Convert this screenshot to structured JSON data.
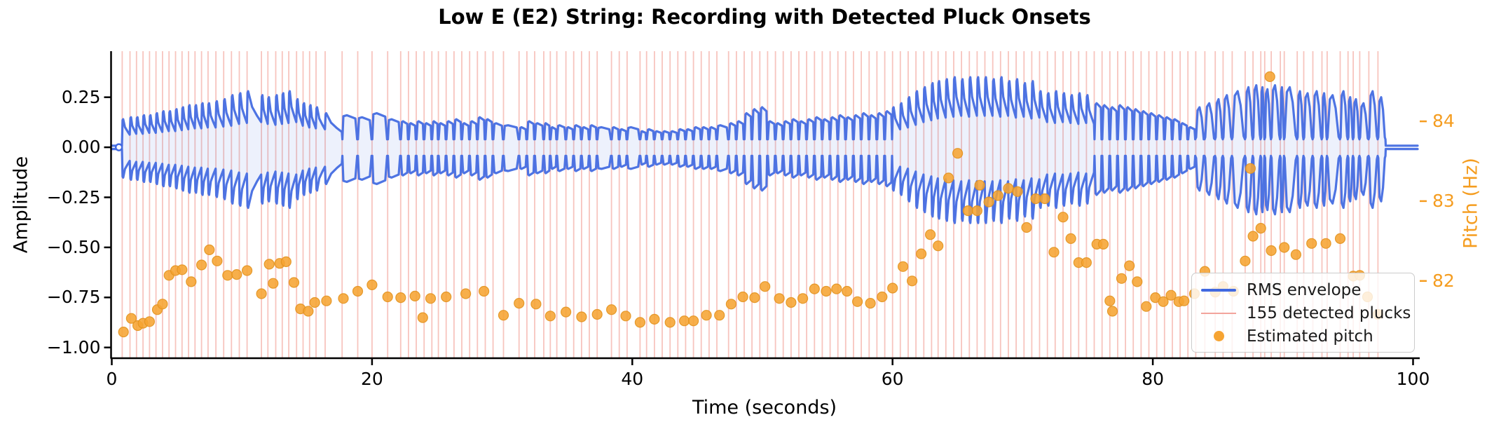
{
  "chart_data": {
    "type": "line+scatter+event-lines",
    "title": "Low E (E2) String: Recording with Detected Pluck Onsets",
    "xlabel": "Time (seconds)",
    "ylabel_left": "Amplitude",
    "ylabel_right": "Pitch (Hz)",
    "xlim": [
      0,
      100.35
    ],
    "ylim_left": [
      -1.05,
      0.48
    ],
    "ylim_right": [
      81.04,
      84.88
    ],
    "grid": false,
    "xtick_values": [
      0,
      20,
      40,
      60,
      80,
      100
    ],
    "xtick_labels": [
      "0",
      "20",
      "40",
      "60",
      "80",
      "100"
    ],
    "ytick_left_values": [
      0.25,
      0.0,
      -0.25,
      -0.5,
      -0.75,
      -1.0
    ],
    "ytick_left_labels": [
      "0.25",
      "0.00",
      "−0.25",
      "−0.50",
      "−0.75",
      "−1.00"
    ],
    "ytick_right_values": [
      84,
      83,
      82
    ],
    "ytick_right_labels": [
      "84",
      "83",
      "82"
    ],
    "colors": {
      "envelope": "#4169e1",
      "envelope_fill": "rgba(80,118,230,0.10)",
      "pluck_lines": "rgba(235,100,85,0.38)",
      "pitch_dots": "#f6a432",
      "pitch_dot_edge": "#e2921f",
      "pitch_axis": "#f59d20",
      "axis": "#000000"
    },
    "legend": {
      "location": "lower right",
      "items": [
        {
          "label": "RMS envelope",
          "marker": "line",
          "color": "#4169e1"
        },
        {
          "label": "155 detected plucks",
          "marker": "line-thin",
          "color": "#f2a49c"
        },
        {
          "label": "Estimated pitch",
          "marker": "dot",
          "color": "#f6a432"
        }
      ]
    },
    "pluck_count": 155,
    "rms_envelope": {
      "neg_scale": 1.08,
      "start_flat_until": 0.8,
      "start_marker_t": 0.55,
      "end_flat_from": 97.9,
      "plucks": [
        [
          0.8,
          0.14,
          "d"
        ],
        [
          1.4,
          0.15,
          "d"
        ],
        [
          1.9,
          0.15,
          "d"
        ],
        [
          2.4,
          0.16,
          "d"
        ],
        [
          2.9,
          0.16,
          "d"
        ],
        [
          3.4,
          0.17,
          "d"
        ],
        [
          3.9,
          0.18,
          "d"
        ],
        [
          4.4,
          0.18,
          "d"
        ],
        [
          4.9,
          0.19,
          "d"
        ],
        [
          5.4,
          0.2,
          "d"
        ],
        [
          5.9,
          0.21,
          "d"
        ],
        [
          6.4,
          0.21,
          "d"
        ],
        [
          6.9,
          0.22,
          "d"
        ],
        [
          7.4,
          0.22,
          "d"
        ],
        [
          8.0,
          0.23,
          "d"
        ],
        [
          8.6,
          0.24,
          "d"
        ],
        [
          9.2,
          0.26,
          "d"
        ],
        [
          9.8,
          0.27,
          "d"
        ],
        [
          10.4,
          0.28,
          "d"
        ],
        [
          11.5,
          0.26,
          "d"
        ],
        [
          12.0,
          0.25,
          "d"
        ],
        [
          12.6,
          0.26,
          "d"
        ],
        [
          13.1,
          0.27,
          "d"
        ],
        [
          13.6,
          0.28,
          "d"
        ],
        [
          14.2,
          0.24,
          "d"
        ],
        [
          14.7,
          0.22,
          "d"
        ],
        [
          15.2,
          0.21,
          "d"
        ],
        [
          15.7,
          0.2,
          "d"
        ],
        [
          16.4,
          0.17,
          "d"
        ],
        [
          17.7,
          0.16,
          "s"
        ],
        [
          18.9,
          0.15,
          "s"
        ],
        [
          20.0,
          0.17,
          "s"
        ],
        [
          21.2,
          0.14,
          "s"
        ],
        [
          22.2,
          0.13,
          "s"
        ],
        [
          22.8,
          0.12,
          "s"
        ],
        [
          23.4,
          0.13,
          "s"
        ],
        [
          24.0,
          0.12,
          "s"
        ],
        [
          24.6,
          0.13,
          "s"
        ],
        [
          25.1,
          0.12,
          "s"
        ],
        [
          25.7,
          0.13,
          "s"
        ],
        [
          26.3,
          0.14,
          "s"
        ],
        [
          26.9,
          0.12,
          "s"
        ],
        [
          27.5,
          0.13,
          "s"
        ],
        [
          28.1,
          0.15,
          "s"
        ],
        [
          28.7,
          0.14,
          "s"
        ],
        [
          29.3,
          0.12,
          "s"
        ],
        [
          30.1,
          0.11,
          "s"
        ],
        [
          31.3,
          0.1,
          "s"
        ],
        [
          31.9,
          0.13,
          "s"
        ],
        [
          32.5,
          0.12,
          "s"
        ],
        [
          33.2,
          0.12,
          "s"
        ],
        [
          33.7,
          0.1,
          "s"
        ],
        [
          34.2,
          0.11,
          "s"
        ],
        [
          34.9,
          0.1,
          "s"
        ],
        [
          35.5,
          0.11,
          "s"
        ],
        [
          36.1,
          0.1,
          "s"
        ],
        [
          36.7,
          0.11,
          "s"
        ],
        [
          37.3,
          0.1,
          "s"
        ],
        [
          38.4,
          0.1,
          "s"
        ],
        [
          39.0,
          0.09,
          "s"
        ],
        [
          39.6,
          0.1,
          "s"
        ],
        [
          40.6,
          0.08,
          "s"
        ],
        [
          41.1,
          0.09,
          "s"
        ],
        [
          41.7,
          0.08,
          "s"
        ],
        [
          42.3,
          0.08,
          "s"
        ],
        [
          42.9,
          0.08,
          "s"
        ],
        [
          43.5,
          0.09,
          "s"
        ],
        [
          44.1,
          0.09,
          "s"
        ],
        [
          44.7,
          0.1,
          "s"
        ],
        [
          45.3,
          0.1,
          "s"
        ],
        [
          45.9,
          0.1,
          "s"
        ],
        [
          46.5,
          0.11,
          "s"
        ],
        [
          47.4,
          0.12,
          "s"
        ],
        [
          48.0,
          0.13,
          "s"
        ],
        [
          48.6,
          0.17,
          "s"
        ],
        [
          49.2,
          0.19,
          "s"
        ],
        [
          49.8,
          0.2,
          "s"
        ],
        [
          50.4,
          0.13,
          "s"
        ],
        [
          51.0,
          0.12,
          "s"
        ],
        [
          51.6,
          0.13,
          "s"
        ],
        [
          52.2,
          0.14,
          "s"
        ],
        [
          52.8,
          0.13,
          "s"
        ],
        [
          53.4,
          0.14,
          "s"
        ],
        [
          54.0,
          0.15,
          "s"
        ],
        [
          54.6,
          0.14,
          "s"
        ],
        [
          55.2,
          0.15,
          "s"
        ],
        [
          55.8,
          0.16,
          "s"
        ],
        [
          56.4,
          0.15,
          "s"
        ],
        [
          57.0,
          0.16,
          "s"
        ],
        [
          57.6,
          0.17,
          "s"
        ],
        [
          58.2,
          0.16,
          "s"
        ],
        [
          58.8,
          0.17,
          "s"
        ],
        [
          59.4,
          0.18,
          "s"
        ],
        [
          60.0,
          0.2,
          "d"
        ],
        [
          60.6,
          0.22,
          "d"
        ],
        [
          61.2,
          0.25,
          "d"
        ],
        [
          61.8,
          0.28,
          "d"
        ],
        [
          62.4,
          0.3,
          "d"
        ],
        [
          63.0,
          0.32,
          "d"
        ],
        [
          63.5,
          0.33,
          "d"
        ],
        [
          64.1,
          0.34,
          "d"
        ],
        [
          64.7,
          0.35,
          "d"
        ],
        [
          65.3,
          0.34,
          "d"
        ],
        [
          65.9,
          0.35,
          "d"
        ],
        [
          66.5,
          0.35,
          "d"
        ],
        [
          67.1,
          0.35,
          "d"
        ],
        [
          67.7,
          0.34,
          "d"
        ],
        [
          68.3,
          0.35,
          "d"
        ],
        [
          68.9,
          0.33,
          "d"
        ],
        [
          69.5,
          0.34,
          "d"
        ],
        [
          70.1,
          0.32,
          "d"
        ],
        [
          70.7,
          0.33,
          "d"
        ],
        [
          71.3,
          0.28,
          "d"
        ],
        [
          71.9,
          0.27,
          "d"
        ],
        [
          72.5,
          0.28,
          "d"
        ],
        [
          73.1,
          0.27,
          "d"
        ],
        [
          73.7,
          0.26,
          "d"
        ],
        [
          74.3,
          0.27,
          "d"
        ],
        [
          74.9,
          0.26,
          "d"
        ],
        [
          75.5,
          0.22,
          "s"
        ],
        [
          76.1,
          0.21,
          "s"
        ],
        [
          76.7,
          0.2,
          "s"
        ],
        [
          77.3,
          0.21,
          "s"
        ],
        [
          77.9,
          0.2,
          "s"
        ],
        [
          78.5,
          0.19,
          "s"
        ],
        [
          79.1,
          0.18,
          "s"
        ],
        [
          79.7,
          0.17,
          "s"
        ],
        [
          80.3,
          0.16,
          "s"
        ],
        [
          80.9,
          0.15,
          "s"
        ],
        [
          81.5,
          0.14,
          "s"
        ],
        [
          82.1,
          0.12,
          "s"
        ],
        [
          82.7,
          0.1,
          "s"
        ],
        [
          83.3,
          0.2,
          "b"
        ],
        [
          84.0,
          0.22,
          "b"
        ],
        [
          84.8,
          0.24,
          "b"
        ],
        [
          85.4,
          0.26,
          "b"
        ],
        [
          86.1,
          0.28,
          "b"
        ],
        [
          87.1,
          0.3,
          "b"
        ],
        [
          87.7,
          0.31,
          "b"
        ],
        [
          88.3,
          0.3,
          "b"
        ],
        [
          88.6,
          0.29,
          "b"
        ],
        [
          89.1,
          0.31,
          "b"
        ],
        [
          89.8,
          0.3,
          "b"
        ],
        [
          90.1,
          0.3,
          "b"
        ],
        [
          91.1,
          0.28,
          "b"
        ],
        [
          91.6,
          0.27,
          "b"
        ],
        [
          92.3,
          0.28,
          "b"
        ],
        [
          93.0,
          0.27,
          "b"
        ],
        [
          93.4,
          0.26,
          "b"
        ],
        [
          94.4,
          0.28,
          "b"
        ],
        [
          95.0,
          0.25,
          "b"
        ],
        [
          95.4,
          0.24,
          "b"
        ],
        [
          95.9,
          0.22,
          "b"
        ],
        [
          96.6,
          0.28,
          "b"
        ],
        [
          97.3,
          0.25,
          "b"
        ]
      ]
    },
    "pitch_points": [
      [
        0.9,
        81.36
      ],
      [
        1.5,
        81.53
      ],
      [
        2.0,
        81.44
      ],
      [
        2.4,
        81.47
      ],
      [
        2.9,
        81.49
      ],
      [
        3.5,
        81.64
      ],
      [
        3.9,
        81.71
      ],
      [
        4.4,
        82.07
      ],
      [
        4.9,
        82.13
      ],
      [
        5.4,
        82.14
      ],
      [
        6.1,
        81.99
      ],
      [
        6.9,
        82.2
      ],
      [
        7.5,
        82.39
      ],
      [
        8.1,
        82.25
      ],
      [
        8.9,
        82.07
      ],
      [
        9.6,
        82.08
      ],
      [
        10.4,
        82.13
      ],
      [
        11.5,
        81.84
      ],
      [
        12.1,
        82.21
      ],
      [
        12.4,
        81.97
      ],
      [
        12.9,
        82.22
      ],
      [
        13.4,
        82.24
      ],
      [
        14.0,
        81.98
      ],
      [
        14.5,
        81.65
      ],
      [
        15.1,
        81.62
      ],
      [
        15.6,
        81.73
      ],
      [
        16.5,
        81.75
      ],
      [
        17.8,
        81.78
      ],
      [
        18.9,
        81.87
      ],
      [
        20.0,
        81.95
      ],
      [
        21.2,
        81.8
      ],
      [
        22.2,
        81.79
      ],
      [
        23.3,
        81.81
      ],
      [
        23.9,
        81.54
      ],
      [
        24.5,
        81.78
      ],
      [
        25.7,
        81.8
      ],
      [
        27.2,
        81.84
      ],
      [
        28.6,
        81.87
      ],
      [
        30.1,
        81.57
      ],
      [
        31.3,
        81.72
      ],
      [
        32.6,
        81.71
      ],
      [
        33.7,
        81.56
      ],
      [
        34.9,
        81.61
      ],
      [
        36.1,
        81.55
      ],
      [
        37.3,
        81.58
      ],
      [
        38.4,
        81.64
      ],
      [
        39.5,
        81.56
      ],
      [
        40.6,
        81.48
      ],
      [
        41.7,
        81.52
      ],
      [
        42.9,
        81.48
      ],
      [
        44.0,
        81.5
      ],
      [
        44.7,
        81.5
      ],
      [
        45.7,
        81.57
      ],
      [
        46.7,
        81.57
      ],
      [
        47.6,
        81.71
      ],
      [
        48.5,
        81.8
      ],
      [
        49.4,
        81.79
      ],
      [
        50.2,
        81.93
      ],
      [
        51.3,
        81.78
      ],
      [
        52.2,
        81.73
      ],
      [
        53.1,
        81.78
      ],
      [
        54.0,
        81.9
      ],
      [
        54.9,
        81.87
      ],
      [
        55.7,
        81.9
      ],
      [
        56.5,
        81.87
      ],
      [
        57.3,
        81.74
      ],
      [
        58.3,
        81.72
      ],
      [
        59.2,
        81.8
      ],
      [
        60.0,
        81.91
      ],
      [
        60.8,
        82.18
      ],
      [
        61.5,
        82.0
      ],
      [
        62.2,
        82.34
      ],
      [
        62.9,
        82.58
      ],
      [
        63.5,
        82.44
      ],
      [
        64.3,
        83.29
      ],
      [
        65.0,
        83.6
      ],
      [
        65.8,
        82.88
      ],
      [
        66.5,
        82.88
      ],
      [
        66.7,
        83.2
      ],
      [
        67.4,
        82.99
      ],
      [
        68.1,
        83.07
      ],
      [
        68.9,
        83.16
      ],
      [
        69.6,
        83.12
      ],
      [
        70.3,
        82.67
      ],
      [
        71.0,
        83.03
      ],
      [
        71.7,
        83.03
      ],
      [
        72.4,
        82.36
      ],
      [
        73.1,
        82.8
      ],
      [
        73.7,
        82.53
      ],
      [
        74.3,
        82.23
      ],
      [
        74.9,
        82.23
      ],
      [
        75.7,
        82.46
      ],
      [
        76.2,
        82.46
      ],
      [
        76.7,
        81.75
      ],
      [
        76.9,
        81.62
      ],
      [
        77.6,
        82.03
      ],
      [
        78.2,
        82.19
      ],
      [
        78.8,
        81.99
      ],
      [
        79.5,
        81.68
      ],
      [
        80.2,
        81.79
      ],
      [
        80.8,
        81.74
      ],
      [
        81.4,
        81.82
      ],
      [
        82.0,
        81.74
      ],
      [
        82.4,
        81.75
      ],
      [
        83.2,
        81.84
      ],
      [
        84.0,
        82.12
      ],
      [
        84.8,
        81.86
      ],
      [
        85.4,
        81.93
      ],
      [
        86.2,
        81.87
      ],
      [
        87.1,
        82.25
      ],
      [
        87.5,
        83.41
      ],
      [
        87.7,
        82.56
      ],
      [
        88.3,
        82.66
      ],
      [
        89.0,
        84.56
      ],
      [
        89.1,
        82.38
      ],
      [
        90.1,
        82.42
      ],
      [
        91.0,
        82.33
      ],
      [
        92.2,
        82.47
      ],
      [
        93.3,
        82.47
      ],
      [
        94.4,
        82.53
      ],
      [
        95.4,
        82.06
      ],
      [
        95.9,
        82.07
      ],
      [
        96.5,
        81.8
      ],
      [
        97.3,
        81.58
      ]
    ]
  }
}
